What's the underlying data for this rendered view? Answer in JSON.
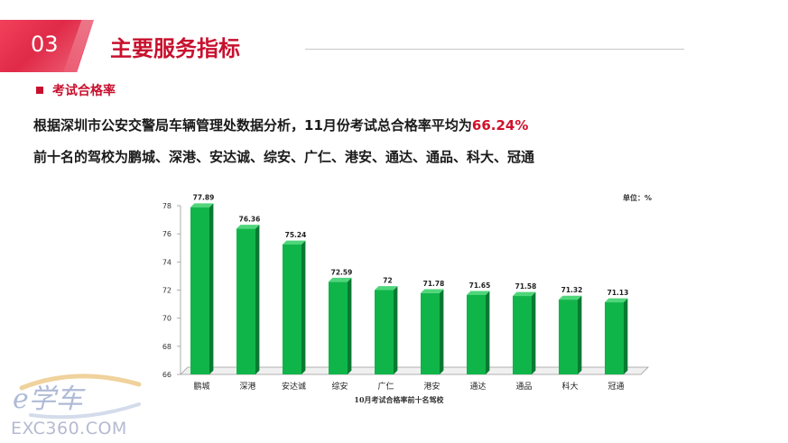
{
  "header": {
    "section_number": "03",
    "title": "主要服务指标"
  },
  "subtitle": "考试合格率",
  "paragraph1": {
    "text": "根据深圳市公安交警局车辆管理处数据分析，11月份考试总合格率平均为",
    "highlight": "66.24%"
  },
  "paragraph2": "前十名的驾校为鹏城、深港、安达诚、综安、广仁、港安、通达、通品、科大、冠通",
  "watermark": {
    "logo_text": "e学车",
    "url": "EXC360.COM"
  },
  "colors": {
    "accent": "#c8102e",
    "bar_front": "#10b54a",
    "bar_side": "#0a7a31",
    "bar_top": "#4fd67a"
  },
  "chart_data": {
    "type": "bar",
    "categories": [
      "鹏城",
      "深港",
      "安达诚",
      "综安",
      "广仁",
      "港安",
      "通达",
      "通品",
      "科大",
      "冠通"
    ],
    "values": [
      77.89,
      76.36,
      75.24,
      72.59,
      72,
      71.78,
      71.65,
      71.58,
      71.32,
      71.13
    ],
    "value_labels": [
      "77.89",
      "76.36",
      "75.24",
      "72.59",
      "72",
      "71.78",
      "71.65",
      "71.58",
      "71.32",
      "71.13"
    ],
    "yticks": [
      66,
      68,
      70,
      72,
      74,
      76,
      78
    ],
    "ylim": [
      66,
      78
    ],
    "title": "10月考试合格率前十名驾校",
    "unit_label": "单位：%",
    "grid": false,
    "legend": "none"
  }
}
